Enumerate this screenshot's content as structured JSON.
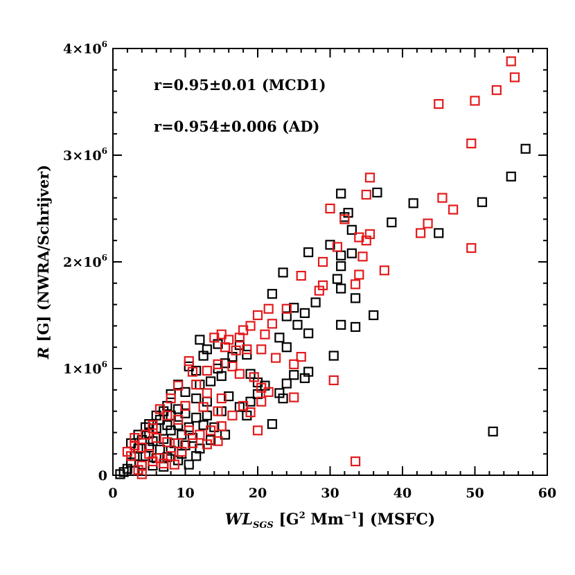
{
  "chart_data": {
    "type": "scatter",
    "xlabel": "WL_SGS [G² Mm⁻¹] (MSFC)",
    "xlabel_parts": {
      "sym": "WL",
      "sub": "SGS",
      "rest": " [G",
      "sup1": "2",
      "mid": " Mm",
      "sup2": "−1",
      "end": "] (MSFC)"
    },
    "ylabel": "R [G] (NWRA/Schrijver)",
    "ylabel_parts": {
      "sym": "R",
      "rest": " [G] (NWRA/Schrijver)"
    },
    "xlim": [
      0,
      60
    ],
    "ylim": [
      0,
      4000000
    ],
    "x_ticks": [
      0,
      10,
      20,
      30,
      40,
      50,
      60
    ],
    "x_tick_labels": [
      "0",
      "10",
      "20",
      "30",
      "40",
      "50",
      "60"
    ],
    "y_ticks": [
      0,
      1000000,
      2000000,
      3000000,
      4000000
    ],
    "y_tick_labels": [
      {
        "base": "0",
        "exp": ""
      },
      {
        "base": "1×10",
        "exp": "6"
      },
      {
        "base": "2×10",
        "exp": "6"
      },
      {
        "base": "3×10",
        "exp": "6"
      },
      {
        "base": "4×10",
        "exp": "6"
      }
    ],
    "annotations": [
      "r=0.95±0.01 (MCD1)",
      "r=0.954±0.006 (AD)"
    ],
    "grid": false,
    "series": [
      {
        "color": "#000000",
        "marker": "square",
        "points": [
          [
            57.0,
            3060000
          ],
          [
            55.0,
            2800000
          ],
          [
            51.0,
            2560000
          ],
          [
            45.0,
            2270000
          ],
          [
            41.5,
            2550000
          ],
          [
            38.5,
            2370000
          ],
          [
            36.5,
            2650000
          ],
          [
            32.5,
            2460000
          ],
          [
            31.5,
            2640000
          ],
          [
            32.0,
            2420000
          ],
          [
            33.0,
            2300000
          ],
          [
            30.0,
            2160000
          ],
          [
            31.5,
            2060000
          ],
          [
            31.5,
            1960000
          ],
          [
            27.0,
            2090000
          ],
          [
            31.0,
            1840000
          ],
          [
            33.0,
            2080000
          ],
          [
            31.5,
            1750000
          ],
          [
            33.5,
            1660000
          ],
          [
            36.0,
            1500000
          ],
          [
            31.5,
            1410000
          ],
          [
            33.5,
            1390000
          ],
          [
            30.5,
            1120000
          ],
          [
            23.5,
            1900000
          ],
          [
            22.0,
            1700000
          ],
          [
            25.0,
            1570000
          ],
          [
            24.0,
            1490000
          ],
          [
            26.5,
            1520000
          ],
          [
            27.0,
            1330000
          ],
          [
            28.0,
            1620000
          ],
          [
            25.5,
            1410000
          ],
          [
            23.0,
            1290000
          ],
          [
            24.0,
            1200000
          ],
          [
            27.0,
            970000
          ],
          [
            26.5,
            910000
          ],
          [
            24.0,
            860000
          ],
          [
            25.0,
            940000
          ],
          [
            23.5,
            720000
          ],
          [
            23.0,
            770000
          ],
          [
            22.0,
            480000
          ],
          [
            21.0,
            840000
          ],
          [
            20.0,
            870000
          ],
          [
            19.0,
            950000
          ],
          [
            18.5,
            1130000
          ],
          [
            17.5,
            1220000
          ],
          [
            16.5,
            1110000
          ],
          [
            15.5,
            1050000
          ],
          [
            14.5,
            1230000
          ],
          [
            13.0,
            1180000
          ],
          [
            12.0,
            1270000
          ],
          [
            12.5,
            1120000
          ],
          [
            11.5,
            980000
          ],
          [
            10.5,
            1020000
          ],
          [
            14.5,
            1000000
          ],
          [
            15.0,
            930000
          ],
          [
            13.5,
            880000
          ],
          [
            12.0,
            850000
          ],
          [
            9.0,
            850000
          ],
          [
            8.0,
            760000
          ],
          [
            10.0,
            780000
          ],
          [
            11.5,
            720000
          ],
          [
            13.0,
            690000
          ],
          [
            16.0,
            740000
          ],
          [
            17.5,
            640000
          ],
          [
            19.0,
            690000
          ],
          [
            20.0,
            760000
          ],
          [
            18.5,
            560000
          ],
          [
            15.0,
            600000
          ],
          [
            13.0,
            560000
          ],
          [
            11.5,
            540000
          ],
          [
            10.0,
            580000
          ],
          [
            9.0,
            620000
          ],
          [
            8.0,
            560000
          ],
          [
            7.0,
            600000
          ],
          [
            6.5,
            520000
          ],
          [
            7.5,
            470000
          ],
          [
            9.0,
            470000
          ],
          [
            10.5,
            450000
          ],
          [
            12.5,
            470000
          ],
          [
            14.0,
            450000
          ],
          [
            15.5,
            380000
          ],
          [
            13.5,
            330000
          ],
          [
            11.0,
            350000
          ],
          [
            9.5,
            380000
          ],
          [
            8.0,
            420000
          ],
          [
            6.0,
            440000
          ],
          [
            5.0,
            390000
          ],
          [
            4.0,
            330000
          ],
          [
            5.5,
            320000
          ],
          [
            7.0,
            340000
          ],
          [
            8.5,
            300000
          ],
          [
            10.0,
            280000
          ],
          [
            12.0,
            250000
          ],
          [
            11.5,
            180000
          ],
          [
            9.5,
            200000
          ],
          [
            8.0,
            230000
          ],
          [
            6.5,
            240000
          ],
          [
            5.0,
            260000
          ],
          [
            3.5,
            250000
          ],
          [
            3.0,
            180000
          ],
          [
            4.5,
            180000
          ],
          [
            6.0,
            160000
          ],
          [
            7.5,
            170000
          ],
          [
            9.0,
            140000
          ],
          [
            10.5,
            100000
          ],
          [
            2.5,
            120000
          ],
          [
            4.0,
            100000
          ],
          [
            5.5,
            90000
          ],
          [
            7.0,
            80000
          ],
          [
            2.0,
            60000
          ],
          [
            1.5,
            30000
          ],
          [
            3.0,
            40000
          ],
          [
            1.0,
            10000
          ],
          [
            2.5,
            300000
          ],
          [
            4.5,
            450000
          ],
          [
            6.0,
            560000
          ],
          [
            7.5,
            650000
          ],
          [
            3.5,
            380000
          ],
          [
            5.0,
            480000
          ],
          [
            52.5,
            410000
          ]
        ]
      },
      {
        "color": "#e31a1c",
        "marker": "square",
        "points": [
          [
            55.0,
            3880000
          ],
          [
            55.5,
            3730000
          ],
          [
            53.0,
            3610000
          ],
          [
            50.0,
            3510000
          ],
          [
            45.0,
            3480000
          ],
          [
            49.5,
            3110000
          ],
          [
            35.5,
            2790000
          ],
          [
            35.0,
            2630000
          ],
          [
            45.5,
            2600000
          ],
          [
            47.0,
            2490000
          ],
          [
            30.0,
            2500000
          ],
          [
            32.0,
            2400000
          ],
          [
            43.5,
            2360000
          ],
          [
            42.5,
            2270000
          ],
          [
            35.5,
            2260000
          ],
          [
            35.0,
            2200000
          ],
          [
            34.0,
            2230000
          ],
          [
            49.5,
            2130000
          ],
          [
            31.0,
            2140000
          ],
          [
            34.5,
            2050000
          ],
          [
            29.0,
            2000000
          ],
          [
            37.5,
            1920000
          ],
          [
            34.0,
            1880000
          ],
          [
            33.5,
            1790000
          ],
          [
            29.0,
            1780000
          ],
          [
            28.5,
            1730000
          ],
          [
            26.0,
            1870000
          ],
          [
            24.0,
            1560000
          ],
          [
            21.5,
            1560000
          ],
          [
            20.0,
            1500000
          ],
          [
            22.0,
            1420000
          ],
          [
            21.0,
            1320000
          ],
          [
            19.0,
            1400000
          ],
          [
            18.0,
            1360000
          ],
          [
            17.5,
            1290000
          ],
          [
            16.0,
            1270000
          ],
          [
            15.0,
            1320000
          ],
          [
            14.0,
            1290000
          ],
          [
            15.5,
            1200000
          ],
          [
            17.0,
            1170000
          ],
          [
            18.5,
            1180000
          ],
          [
            20.5,
            1180000
          ],
          [
            22.5,
            1100000
          ],
          [
            26.0,
            1110000
          ],
          [
            25.0,
            1040000
          ],
          [
            10.5,
            1070000
          ],
          [
            11.0,
            970000
          ],
          [
            13.0,
            980000
          ],
          [
            14.5,
            1040000
          ],
          [
            16.5,
            1020000
          ],
          [
            17.5,
            950000
          ],
          [
            19.5,
            920000
          ],
          [
            20.5,
            820000
          ],
          [
            21.5,
            780000
          ],
          [
            25.0,
            730000
          ],
          [
            30.5,
            890000
          ],
          [
            20.5,
            690000
          ],
          [
            18.0,
            650000
          ],
          [
            15.0,
            720000
          ],
          [
            13.0,
            770000
          ],
          [
            11.5,
            850000
          ],
          [
            9.0,
            840000
          ],
          [
            8.0,
            720000
          ],
          [
            10.0,
            650000
          ],
          [
            12.5,
            640000
          ],
          [
            14.5,
            600000
          ],
          [
            16.5,
            560000
          ],
          [
            19.0,
            590000
          ],
          [
            15.0,
            460000
          ],
          [
            13.5,
            420000
          ],
          [
            12.0,
            380000
          ],
          [
            10.5,
            420000
          ],
          [
            9.0,
            520000
          ],
          [
            7.5,
            560000
          ],
          [
            6.5,
            620000
          ],
          [
            5.5,
            470000
          ],
          [
            4.5,
            380000
          ],
          [
            6.0,
            350000
          ],
          [
            7.5,
            310000
          ],
          [
            9.0,
            300000
          ],
          [
            11.0,
            300000
          ],
          [
            13.0,
            290000
          ],
          [
            14.5,
            320000
          ],
          [
            20.0,
            420000
          ],
          [
            9.5,
            220000
          ],
          [
            8.0,
            180000
          ],
          [
            6.5,
            160000
          ],
          [
            5.0,
            200000
          ],
          [
            4.0,
            260000
          ],
          [
            3.0,
            280000
          ],
          [
            8.5,
            100000
          ],
          [
            7.0,
            110000
          ],
          [
            5.5,
            130000
          ],
          [
            4.0,
            90000
          ],
          [
            3.5,
            50000
          ],
          [
            4.0,
            10000
          ],
          [
            2.5,
            180000
          ],
          [
            3.0,
            350000
          ],
          [
            5.5,
            440000
          ],
          [
            2.0,
            220000
          ],
          [
            33.5,
            130000
          ]
        ]
      }
    ]
  }
}
